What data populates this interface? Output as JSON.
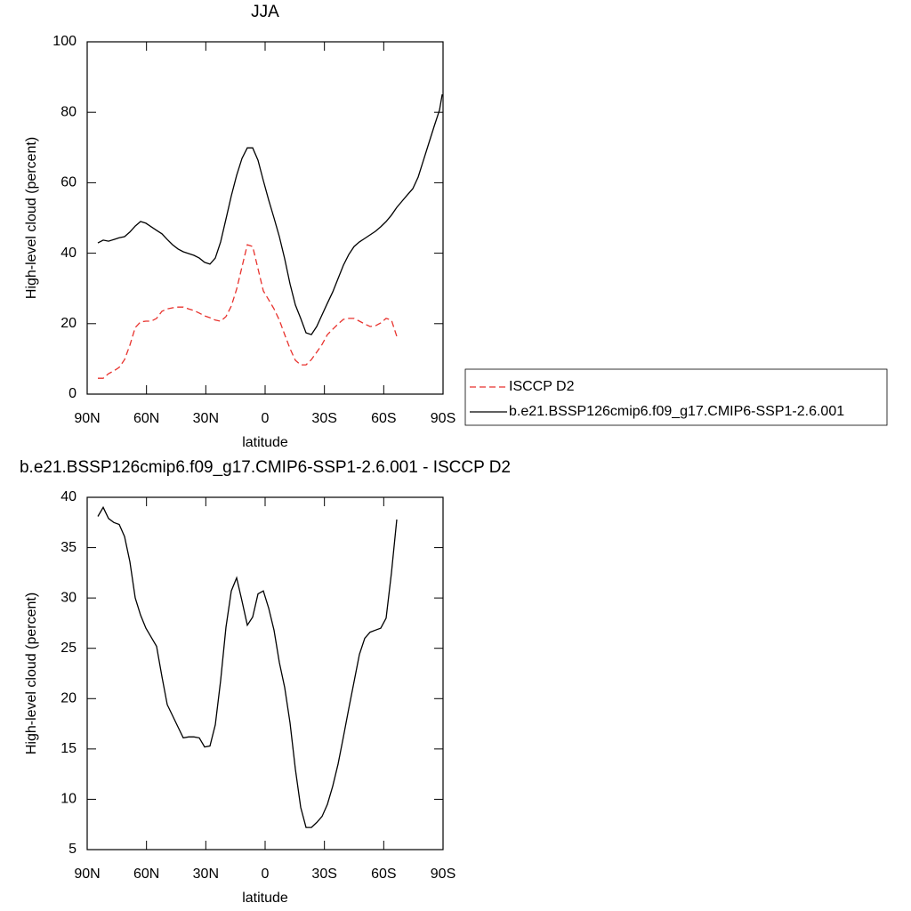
{
  "chart_data": [
    {
      "type": "line",
      "title": "JJA",
      "xlabel": "latitude",
      "ylabel": "High-level cloud (percent)",
      "xlim": [
        90,
        -90
      ],
      "xticks": [
        {
          "value": 90,
          "label": "90N"
        },
        {
          "value": 60,
          "label": "60N"
        },
        {
          "value": 30,
          "label": "30N"
        },
        0,
        {
          "value": -30,
          "label": "30S"
        },
        {
          "value": -60,
          "label": "60S"
        },
        {
          "value": -90,
          "label": "90S"
        }
      ],
      "ylim": [
        0,
        100
      ],
      "yticks": [
        0,
        20,
        40,
        60,
        80,
        100
      ],
      "legend": "right",
      "x": [
        84.6,
        81.9,
        79.2,
        76.5,
        73.8,
        71.1,
        68.4,
        65.7,
        63,
        60.3,
        57.6,
        54.9,
        52.2,
        49.5,
        46.8,
        44.1,
        41.4,
        38.7,
        36,
        33.3,
        30.6,
        27.9,
        25.2,
        22.5,
        19.8,
        17.1,
        14.4,
        11.7,
        9,
        6.3,
        3.6,
        0.9,
        -1.8,
        -4.5,
        -7.2,
        -9.9,
        -12.6,
        -15.3,
        -18,
        -20.7,
        -23.4,
        -26.1,
        -28.8,
        -31.5,
        -34.2,
        -36.9,
        -39.6,
        -42.3,
        -45,
        -47.7,
        -50.4,
        -53.1,
        -55.8,
        -58.5,
        -61.2,
        -63.9,
        -66.6,
        -69.3,
        -72,
        -74.7,
        -77.4,
        -80.1,
        -82.8,
        -85.5,
        -88.2,
        -89.6
      ],
      "series": [
        {
          "name": "ISCCP D2",
          "color": "#e8322d",
          "line_style": "dashed",
          "values": [
            4.5,
            4.5,
            5.8,
            6.6,
            7.6,
            9.8,
            13.9,
            18.9,
            20.5,
            20.7,
            20.7,
            21.5,
            23.5,
            24.2,
            24.5,
            24.7,
            24.7,
            24.2,
            23.7,
            23.0,
            22.2,
            21.7,
            21.0,
            20.7,
            22.0,
            25,
            29.8,
            36.1,
            42.4,
            41.9,
            35.6,
            29.3,
            26.8,
            24.2,
            21.0,
            16.9,
            12.9,
            9.6,
            8.3,
            8.3,
            9.8,
            11.9,
            14.1,
            16.9,
            18.4,
            19.9,
            21.2,
            21.5,
            21.5,
            20.7,
            19.9,
            19.2,
            19.4,
            20.2,
            21.5,
            21.0,
            16.4,
            null,
            null,
            null,
            null,
            null,
            null,
            null,
            null,
            null
          ]
        },
        {
          "name": "b.e21.BSSP126cmip6.f09_g17.CMIP6-SSP1-2.6.001",
          "color": "#000000",
          "line_style": "solid",
          "values": [
            42.9,
            43.7,
            43.4,
            43.9,
            44.4,
            44.7,
            46.0,
            47.7,
            49.0,
            48.5,
            47.5,
            46.5,
            45.5,
            43.9,
            42.4,
            41.2,
            40.4,
            39.9,
            39.4,
            38.6,
            37.4,
            36.9,
            38.6,
            43.2,
            49.7,
            56.3,
            62.1,
            66.9,
            69.9,
            69.9,
            66.4,
            60.6,
            55.1,
            50,
            44.7,
            38.4,
            31.3,
            25.3,
            21.5,
            17.4,
            16.9,
            19.2,
            22.5,
            25.8,
            29.0,
            32.8,
            36.6,
            39.6,
            41.9,
            43.2,
            44.2,
            45.2,
            46.2,
            47.5,
            49.0,
            50.8,
            53.0,
            54.8,
            56.6,
            58.3,
            61.6,
            66.4,
            71.2,
            76.0,
            80.6,
            85.1
          ]
        }
      ]
    },
    {
      "type": "line",
      "title": "b.e21.BSSP126cmip6.f09_g17.CMIP6-SSP1-2.6.001 - ISCCP D2",
      "xlabel": "latitude",
      "ylabel": "High-level cloud (percent)",
      "xlim": [
        90,
        -90
      ],
      "xticks": [
        {
          "value": 90,
          "label": "90N"
        },
        {
          "value": 60,
          "label": "60N"
        },
        {
          "value": 30,
          "label": "30N"
        },
        0,
        {
          "value": -30,
          "label": "30S"
        },
        {
          "value": -60,
          "label": "60S"
        },
        {
          "value": -90,
          "label": "90S"
        }
      ],
      "ylim": [
        5,
        40
      ],
      "yticks": [
        5,
        10,
        15,
        20,
        25,
        30,
        35,
        40
      ],
      "x": [
        84.6,
        81.9,
        79.2,
        76.5,
        73.8,
        71.1,
        68.4,
        65.7,
        63,
        60.3,
        57.6,
        54.9,
        52.2,
        49.5,
        46.8,
        44.1,
        41.4,
        38.7,
        36,
        33.3,
        30.6,
        27.9,
        25.2,
        22.5,
        19.8,
        17.1,
        14.4,
        11.7,
        9,
        6.3,
        3.6,
        0.9,
        -1.8,
        -4.5,
        -7.2,
        -9.9,
        -12.6,
        -15.3,
        -18,
        -20.7,
        -23.4,
        -26.1,
        -28.8,
        -31.5,
        -34.2,
        -36.9,
        -39.6,
        -42.3,
        -45,
        -47.7,
        -50.4,
        -53.1,
        -55.8,
        -58.5,
        -61.2,
        -63.9,
        -66.6
      ],
      "color": "#000000",
      "values": [
        38.1,
        39.0,
        37.9,
        37.5,
        37.3,
        36.1,
        33.6,
        30.0,
        28.3,
        27.0,
        26.1,
        25.2,
        22.2,
        19.4,
        18.3,
        17.2,
        16.1,
        16.2,
        16.2,
        16.1,
        15.2,
        15.3,
        17.4,
        21.8,
        27.1,
        30.7,
        32.0,
        29.7,
        27.3,
        28.1,
        30.4,
        30.7,
        29.0,
        26.8,
        23.6,
        21.1,
        17.6,
        13.0,
        9.2,
        7.2,
        7.2,
        7.7,
        8.3,
        9.5,
        11.3,
        13.5,
        16.2,
        19.0,
        21.7,
        24.4,
        26.0,
        26.6,
        26.8,
        27.0,
        28.0,
        32.5,
        37.8
      ]
    }
  ]
}
